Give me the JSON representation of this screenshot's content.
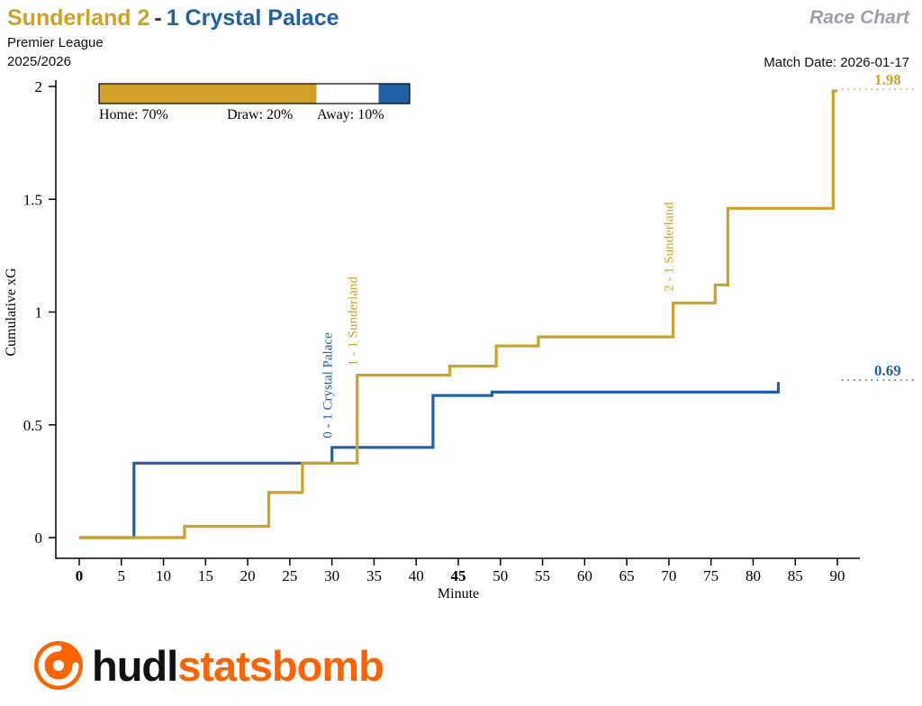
{
  "header": {
    "home": "Sunderland 2",
    "separator": "-",
    "away": "1 Crystal Palace",
    "race_chart": "Race Chart",
    "competition": "Premier League",
    "season": "2025/2026",
    "match_date": "Match Date: 2026-01-17"
  },
  "legend": {
    "home_label": "Home: 70%",
    "draw_label": "Draw: 20%",
    "away_label": "Away: 10%",
    "home_pct": 70,
    "draw_pct": 20,
    "away_pct": 10
  },
  "colors": {
    "home_gold": "#cfa227",
    "away_blue": "#2060a8",
    "race_chart_gray": "#9aa1a9",
    "logo_orange": "#fb6404"
  },
  "chart_data": {
    "type": "line",
    "subtype": "step",
    "title": "Sunderland 2 - 1 Crystal Palace cumulative xG race chart",
    "xlabel": "Minute",
    "ylabel": "Cumulative xG",
    "xlim": [
      0,
      90
    ],
    "ylim": [
      0,
      2
    ],
    "grid": false,
    "legend_position": "top-left-inside",
    "xticks": [
      {
        "label": "0",
        "value": 0,
        "bold": true
      },
      {
        "label": "5",
        "value": 5,
        "bold": false
      },
      {
        "label": "10",
        "value": 10,
        "bold": false
      },
      {
        "label": "15",
        "value": 15,
        "bold": false
      },
      {
        "label": "20",
        "value": 20,
        "bold": false
      },
      {
        "label": "25",
        "value": 25,
        "bold": false
      },
      {
        "label": "30",
        "value": 30,
        "bold": false
      },
      {
        "label": "35",
        "value": 35,
        "bold": false
      },
      {
        "label": "40",
        "value": 40,
        "bold": false
      },
      {
        "label": "45",
        "value": 45,
        "bold": true
      },
      {
        "label": "50",
        "value": 50,
        "bold": false
      },
      {
        "label": "55",
        "value": 55,
        "bold": false
      },
      {
        "label": "60",
        "value": 60,
        "bold": false
      },
      {
        "label": "65",
        "value": 65,
        "bold": false
      },
      {
        "label": "70",
        "value": 70,
        "bold": false
      },
      {
        "label": "75",
        "value": 75,
        "bold": false
      },
      {
        "label": "80",
        "value": 80,
        "bold": false
      },
      {
        "label": "85",
        "value": 85,
        "bold": false
      },
      {
        "label": "90",
        "value": 90,
        "bold": false
      }
    ],
    "yticks": [
      {
        "label": "0",
        "value": 0
      },
      {
        "label": "0.5",
        "value": 0.5
      },
      {
        "label": "1",
        "value": 1
      },
      {
        "label": "1.5",
        "value": 1.5
      },
      {
        "label": "2",
        "value": 2
      }
    ],
    "series": [
      {
        "name": "Sunderland",
        "role": "home",
        "color": "#cfa227",
        "final_value": 1.98,
        "final_label": "1.98",
        "points": [
          [
            0,
            0
          ],
          [
            12.5,
            0.05
          ],
          [
            22.5,
            0.2
          ],
          [
            26.5,
            0.33
          ],
          [
            33,
            0.72
          ],
          [
            44,
            0.76
          ],
          [
            49.5,
            0.85
          ],
          [
            54.5,
            0.89
          ],
          [
            70.5,
            1.04
          ],
          [
            75.5,
            1.12
          ],
          [
            77,
            1.46
          ],
          [
            89.5,
            1.98
          ],
          [
            90,
            1.98
          ]
        ]
      },
      {
        "name": "Crystal Palace",
        "role": "away",
        "color": "#2060a8",
        "final_value": 0.69,
        "final_label": "0.69",
        "points": [
          [
            0,
            0
          ],
          [
            6.5,
            0.33
          ],
          [
            30,
            0.4
          ],
          [
            42,
            0.63
          ],
          [
            49,
            0.645
          ],
          [
            83,
            0.69
          ]
        ]
      }
    ],
    "annotations": [
      {
        "label": "0 - 1 Crystal Palace",
        "minute": 30,
        "value": 0.44,
        "color": "#2060a8"
      },
      {
        "label": "1 - 1 Sunderland",
        "minute": 33,
        "value": 0.76,
        "color": "#cfa227"
      },
      {
        "label": "2 - 1 Sunderland",
        "minute": 70.5,
        "value": 1.09,
        "color": "#cfa227"
      }
    ]
  },
  "footer": {
    "hudl": "hudl",
    "statsbomb": "statsbomb"
  }
}
